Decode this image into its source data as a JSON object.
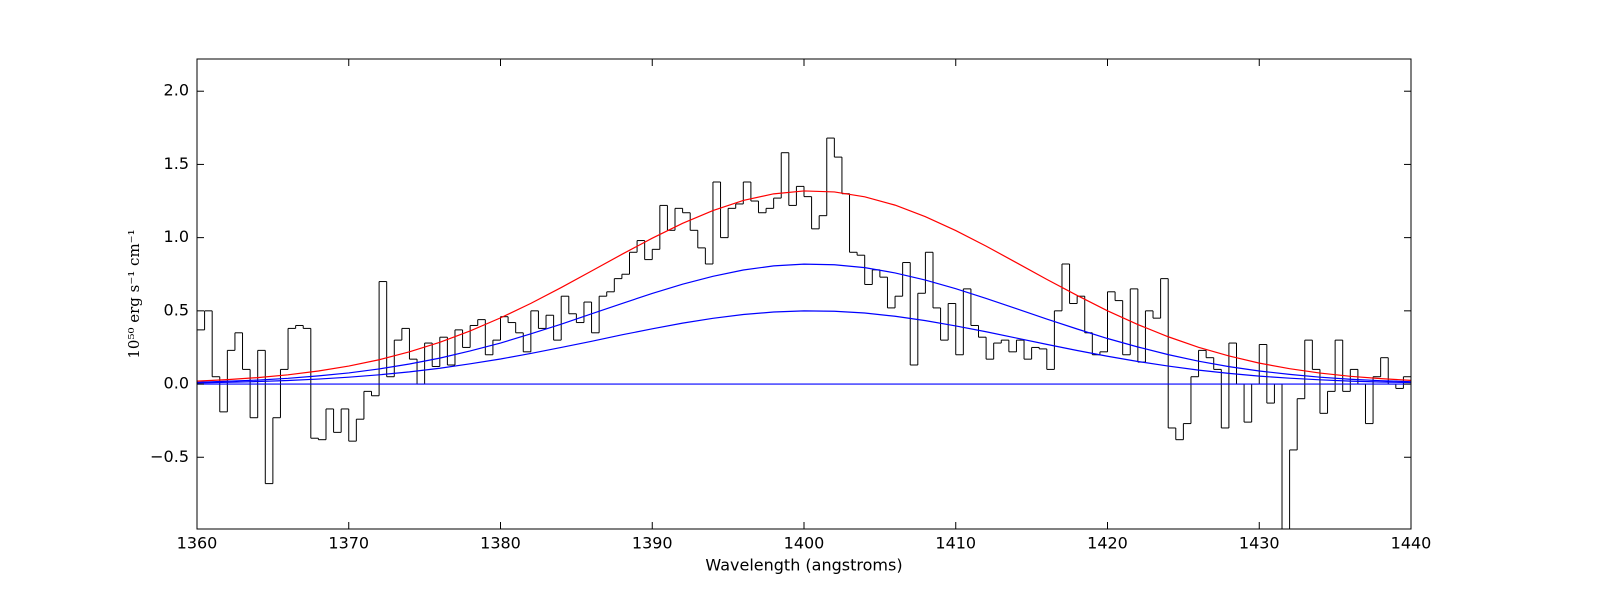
{
  "chart_data": [
    {
      "type": "histogram",
      "xlabel": "Wavelength (angstroms)",
      "ylabel": "10⁵⁰ erg s⁻¹ cm⁻¹",
      "xlim": [
        1360,
        1440
      ],
      "ylim": [
        -0.99,
        2.22
      ],
      "xticks": [
        1360,
        1370,
        1380,
        1390,
        1400,
        1410,
        1420,
        1430,
        1440
      ],
      "yticks": [
        {
          "value": -0.5,
          "label": "−0.5"
        },
        {
          "value": 0,
          "label": "0.0"
        },
        0.5,
        {
          "value": 1,
          "label": "1.0"
        },
        1.5,
        {
          "value": 2,
          "label": "2.0"
        }
      ],
      "color": "#000000",
      "bins": [
        1360,
        1360.5,
        1361,
        1361.5,
        1362,
        1362.5,
        1363,
        1363.5,
        1364,
        1364.5,
        1365,
        1365.5,
        1366,
        1366.5,
        1367,
        1367.5,
        1368,
        1368.5,
        1369,
        1369.5,
        1370,
        1370.5,
        1371,
        1371.5,
        1372,
        1372.5,
        1373,
        1373.5,
        1374,
        1374.5,
        1375,
        1375.5,
        1376,
        1376.5,
        1377,
        1377.5,
        1378,
        1378.5,
        1379,
        1379.5,
        1380,
        1380.5,
        1381,
        1381.5,
        1382,
        1382.5,
        1383,
        1383.5,
        1384,
        1384.5,
        1385,
        1385.5,
        1386,
        1386.5,
        1387,
        1387.5,
        1388,
        1388.5,
        1389,
        1389.5,
        1390,
        1390.5,
        1391,
        1391.5,
        1392,
        1392.5,
        1393,
        1393.5,
        1394,
        1394.5,
        1395,
        1395.5,
        1396,
        1396.5,
        1397,
        1397.5,
        1398,
        1398.5,
        1399,
        1399.5,
        1400,
        1400.5,
        1401,
        1401.5,
        1402,
        1402.5,
        1403,
        1403.5,
        1404,
        1404.5,
        1405,
        1405.5,
        1406,
        1406.5,
        1407,
        1407.5,
        1408,
        1408.5,
        1409,
        1409.5,
        1410,
        1410.5,
        1411,
        1411.5,
        1412,
        1412.5,
        1413,
        1413.5,
        1414,
        1414.5,
        1415,
        1415.5,
        1416,
        1416.5,
        1417,
        1417.5,
        1418,
        1418.5,
        1419,
        1419.5,
        1420,
        1420.5,
        1421,
        1421.5,
        1422,
        1422.5,
        1423,
        1423.5,
        1424,
        1424.5,
        1425,
        1425.5,
        1426,
        1426.5,
        1427,
        1427.5,
        1428,
        1428.5,
        1429,
        1429.5,
        1430,
        1430.5,
        1431,
        1431.5,
        1432,
        1432.5,
        1433,
        1433.5,
        1434,
        1434.5,
        1435,
        1435.5,
        1436,
        1436.5,
        1437,
        1437.5,
        1438,
        1438.5,
        1439,
        1439.5,
        1440
      ],
      "values": [
        0.37,
        0.5,
        0.05,
        -0.19,
        0.23,
        0.35,
        0.1,
        -0.23,
        0.23,
        -0.68,
        -0.23,
        0.1,
        0.38,
        0.4,
        0.38,
        -0.37,
        -0.38,
        -0.17,
        -0.33,
        -0.17,
        -0.39,
        -0.24,
        -0.05,
        -0.08,
        0.7,
        0.05,
        0.3,
        0.38,
        0.17,
        0.0,
        0.28,
        0.12,
        0.32,
        0.13,
        0.37,
        0.25,
        0.4,
        0.44,
        0.2,
        0.3,
        0.46,
        0.42,
        0.35,
        0.22,
        0.5,
        0.38,
        0.47,
        0.3,
        0.6,
        0.48,
        0.42,
        0.56,
        0.35,
        0.6,
        0.63,
        0.72,
        0.75,
        0.9,
        0.98,
        0.85,
        0.92,
        1.22,
        1.05,
        1.2,
        1.17,
        1.05,
        0.93,
        0.82,
        1.38,
        1.0,
        1.2,
        1.23,
        1.38,
        1.25,
        1.17,
        1.2,
        1.27,
        1.58,
        1.22,
        1.35,
        1.28,
        1.06,
        1.15,
        1.68,
        1.55,
        1.3,
        0.9,
        0.88,
        0.68,
        0.78,
        0.73,
        0.52,
        0.6,
        0.83,
        0.13,
        0.62,
        0.9,
        0.52,
        0.3,
        0.55,
        0.2,
        0.65,
        0.4,
        0.32,
        0.17,
        0.28,
        0.3,
        0.22,
        0.3,
        0.17,
        0.25,
        0.24,
        0.1,
        0.5,
        0.82,
        0.55,
        0.6,
        0.35,
        0.2,
        0.22,
        0.63,
        0.57,
        0.2,
        0.65,
        0.15,
        0.5,
        0.45,
        0.72,
        -0.3,
        -0.38,
        -0.27,
        0.05,
        0.23,
        0.18,
        0.1,
        -0.3,
        0.28,
        0.0,
        -0.26,
        0.0,
        0.27,
        -0.13,
        0.0,
        -1.05,
        -0.45,
        -0.1,
        0.3,
        0.1,
        -0.2,
        -0.05,
        0.3,
        -0.05,
        0.1,
        0.0,
        -0.27,
        0.05,
        0.18,
        0.0,
        -0.03,
        0.05
      ]
    },
    {
      "type": "line",
      "series": [
        {
          "color": "#0000ff",
          "x": [
            1360,
            1440
          ],
          "values": [
            0,
            0
          ]
        },
        {
          "color": "#0000ff",
          "x": [
            1360,
            1362,
            1364,
            1366,
            1368,
            1370,
            1372,
            1374,
            1376,
            1378,
            1380,
            1382,
            1384,
            1386,
            1388,
            1390,
            1392,
            1394,
            1396,
            1398,
            1400,
            1402,
            1404,
            1406,
            1408,
            1410,
            1412,
            1414,
            1416,
            1418,
            1420,
            1422,
            1424,
            1426,
            1428,
            1430,
            1432,
            1434,
            1436,
            1438,
            1440
          ],
          "values": [
            0.008,
            0.012,
            0.017,
            0.024,
            0.034,
            0.047,
            0.063,
            0.083,
            0.108,
            0.138,
            0.171,
            0.209,
            0.25,
            0.292,
            0.336,
            0.377,
            0.416,
            0.449,
            0.475,
            0.492,
            0.5,
            0.497,
            0.485,
            0.463,
            0.433,
            0.397,
            0.357,
            0.314,
            0.271,
            0.229,
            0.19,
            0.154,
            0.123,
            0.095,
            0.073,
            0.054,
            0.04,
            0.029,
            0.02,
            0.014,
            0.01
          ]
        },
        {
          "color": "#0000ff",
          "x": [
            1360,
            1362,
            1364,
            1366,
            1368,
            1370,
            1372,
            1374,
            1376,
            1378,
            1380,
            1382,
            1384,
            1386,
            1388,
            1390,
            1392,
            1394,
            1396,
            1398,
            1400,
            1402,
            1404,
            1406,
            1408,
            1410,
            1412,
            1414,
            1416,
            1418,
            1420,
            1422,
            1424,
            1426,
            1428,
            1430,
            1432,
            1434,
            1436,
            1438,
            1440
          ],
          "values": [
            0.012,
            0.019,
            0.027,
            0.039,
            0.056,
            0.076,
            0.103,
            0.137,
            0.177,
            0.226,
            0.28,
            0.343,
            0.409,
            0.48,
            0.55,
            0.619,
            0.682,
            0.736,
            0.779,
            0.807,
            0.819,
            0.815,
            0.795,
            0.759,
            0.71,
            0.651,
            0.585,
            0.515,
            0.444,
            0.376,
            0.311,
            0.253,
            0.201,
            0.156,
            0.119,
            0.089,
            0.066,
            0.047,
            0.033,
            0.023,
            0.016
          ]
        },
        {
          "color": "#ff0000",
          "x": [
            1360,
            1362,
            1364,
            1366,
            1368,
            1370,
            1372,
            1374,
            1376,
            1378,
            1380,
            1382,
            1384,
            1386,
            1388,
            1390,
            1392,
            1394,
            1396,
            1398,
            1400,
            1402,
            1404,
            1406,
            1408,
            1410,
            1412,
            1414,
            1416,
            1418,
            1420,
            1422,
            1424,
            1426,
            1428,
            1430,
            1432,
            1434,
            1436,
            1438,
            1440
          ],
          "values": [
            0.02,
            0.03,
            0.044,
            0.063,
            0.089,
            0.123,
            0.166,
            0.22,
            0.285,
            0.363,
            0.452,
            0.551,
            0.659,
            0.772,
            0.886,
            0.996,
            1.098,
            1.185,
            1.254,
            1.299,
            1.319,
            1.312,
            1.279,
            1.222,
            1.143,
            1.048,
            0.942,
            0.829,
            0.715,
            0.605,
            0.5,
            0.406,
            0.323,
            0.251,
            0.192,
            0.143,
            0.105,
            0.075,
            0.053,
            0.037,
            0.025
          ]
        }
      ]
    }
  ]
}
